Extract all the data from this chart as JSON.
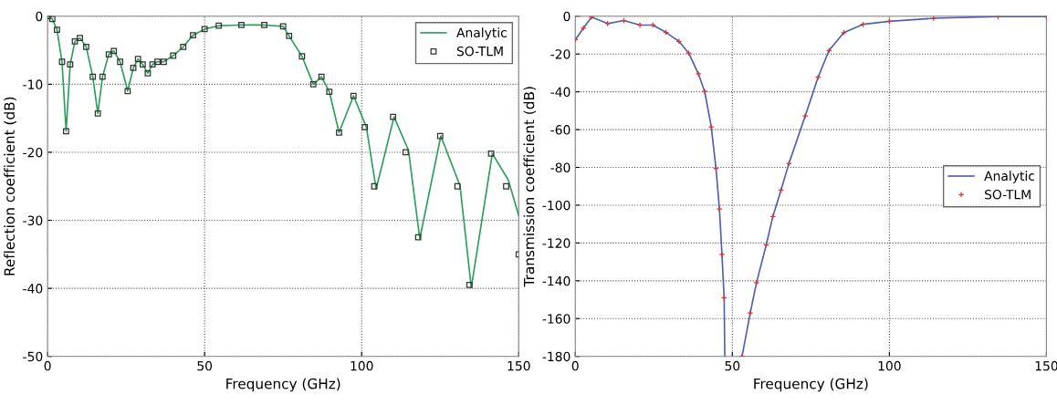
{
  "chart_data": [
    {
      "type": "line",
      "xlabel": "Frequency (GHz)",
      "ylabel": "Reflection coefficient (dB)",
      "xlim": [
        0,
        150
      ],
      "ylim": [
        -50,
        0
      ],
      "xticks": [
        0,
        50,
        100,
        150
      ],
      "yticks": [
        -50,
        -40,
        -30,
        -20,
        -10,
        0
      ],
      "grid": true,
      "legend": "top right",
      "series": [
        {
          "name": "Analytic",
          "color": "#2ca05a",
          "marker": "none",
          "line_style": "solid",
          "x": [
            0,
            1.5,
            3,
            4.6,
            5.9,
            7.2,
            8.7,
            10.3,
            12.3,
            14.4,
            16,
            17.5,
            19.5,
            21.1,
            23.1,
            25.5,
            27.3,
            28.8,
            30.3,
            31.9,
            33.4,
            35,
            37,
            40,
            43.2,
            46.3,
            50,
            54.5,
            61.7,
            69,
            75,
            76.9,
            81,
            84.6,
            87.2,
            89.7,
            92.8,
            97.4,
            101.5,
            104.6,
            110.3,
            114.9,
            118.5,
            125.2,
            131.3,
            134.9,
            141.6,
            146.7,
            150
          ],
          "values": [
            0,
            -0.4,
            -2,
            -6.7,
            -16.9,
            -7.1,
            -3.7,
            -3.2,
            -4.5,
            -8.9,
            -14.3,
            -8.9,
            -5.6,
            -5.1,
            -6.7,
            -11,
            -7.6,
            -6.3,
            -7.1,
            -8.4,
            -7.1,
            -6.7,
            -6.7,
            -5.8,
            -4.5,
            -2.8,
            -1.9,
            -1.4,
            -1.3,
            -1.3,
            -1.5,
            -2.9,
            -5.9,
            -10,
            -8.9,
            -11.1,
            -17.1,
            -11.7,
            -16.3,
            -25.4,
            -14.8,
            -19.7,
            -32.7,
            -17.6,
            -24.9,
            -39.9,
            -20.2,
            -24.1,
            -29.3
          ]
        },
        {
          "name": "SO-TLM",
          "type": "scatter",
          "color": "#333333",
          "marker": "square",
          "x": [
            0,
            1.5,
            3,
            4.6,
            5.9,
            7.2,
            8.7,
            10.3,
            12.3,
            14.4,
            16,
            17.5,
            19.5,
            21.1,
            23.1,
            25.5,
            27.3,
            28.8,
            30.3,
            31.9,
            33.4,
            35,
            37,
            40,
            43.2,
            46.3,
            50,
            54.5,
            61.7,
            69,
            75,
            76.9,
            81,
            84.6,
            87.2,
            89.7,
            92.8,
            97.4,
            101,
            104,
            110,
            114,
            118,
            125,
            130.5,
            134.3,
            141.2,
            146,
            150
          ],
          "values": [
            0,
            -0.4,
            -2,
            -6.7,
            -16.9,
            -7.1,
            -3.7,
            -3.2,
            -4.5,
            -8.9,
            -14.3,
            -8.9,
            -5.6,
            -5.1,
            -6.7,
            -11,
            -7.6,
            -6.3,
            -7.1,
            -8.4,
            -7.1,
            -6.7,
            -6.7,
            -5.8,
            -4.5,
            -2.8,
            -1.9,
            -1.4,
            -1.3,
            -1.3,
            -1.5,
            -2.9,
            -5.9,
            -10,
            -8.9,
            -11.1,
            -17.1,
            -11.7,
            -16.3,
            -25,
            -14.8,
            -20,
            -32.5,
            -17.6,
            -25,
            -39.5,
            -20.2,
            -25,
            -35
          ]
        }
      ]
    },
    {
      "type": "line",
      "xlabel": "Frequency (GHz)",
      "ylabel": "Transmission coefficient (dB)",
      "xlim": [
        0,
        150
      ],
      "ylim": [
        -180,
        0
      ],
      "xticks": [
        0,
        50,
        100,
        150
      ],
      "yticks": [
        -180,
        -160,
        -140,
        -120,
        -100,
        -80,
        -60,
        -40,
        -20,
        0
      ],
      "grid": true,
      "legend": "right",
      "series": [
        {
          "name": "Analytic",
          "color": "#5060b0",
          "marker": "none",
          "line_style": "solid",
          "x": [
            0,
            2.6,
            5.2,
            10.3,
            15.5,
            20.6,
            24.7,
            28.9,
            33,
            36.1,
            39.2,
            41.2,
            43.3,
            44.8,
            45.9,
            46.7,
            47.4,
            47.6,
            50,
            53.1,
            55.7,
            57.7,
            60.8,
            62.9,
            65.5,
            68,
            73.2,
            77.3,
            80.8,
            85.5,
            91.6,
            100,
            114.1,
            134.6,
            150
          ],
          "values": [
            -12.5,
            -6.3,
            -0.5,
            -3.9,
            -2.3,
            -4.7,
            -4.7,
            -8.6,
            -13.3,
            -19.5,
            -30.5,
            -39.8,
            -58.6,
            -80.5,
            -102,
            -126,
            -149,
            -180,
            null,
            -180,
            -157,
            -141,
            -121,
            -106,
            -92,
            -78,
            -52.8,
            -32.3,
            -18.1,
            -8.7,
            -4.3,
            -2.7,
            -1.1,
            -0.2,
            -0.2
          ]
        },
        {
          "name": "SO-TLM",
          "type": "scatter",
          "color": "#e03030",
          "marker": "cross",
          "x": [
            0,
            2.6,
            5.2,
            10.3,
            15.5,
            20.6,
            24.7,
            28.9,
            33,
            36.1,
            39.2,
            41.2,
            43.3,
            44.8,
            45.9,
            46.7,
            47.4,
            53.1,
            55.7,
            57.7,
            60.8,
            62.9,
            65.5,
            68,
            73.2,
            77.3,
            80.8,
            85.5,
            91.6,
            100,
            114.1,
            134.6,
            150
          ],
          "values": [
            -12.5,
            -6.3,
            -0.5,
            -3.9,
            -2.3,
            -4.7,
            -4.7,
            -8.6,
            -13.3,
            -19.5,
            -30.5,
            -39.8,
            -58.6,
            -80.5,
            -102,
            -126,
            -149,
            -180,
            -157,
            -141,
            -121,
            -106,
            -92,
            -78,
            -52.8,
            -32.3,
            -18.1,
            -8.7,
            -4.3,
            -2.7,
            -1.1,
            -0.2,
            -0.2
          ]
        }
      ]
    }
  ]
}
